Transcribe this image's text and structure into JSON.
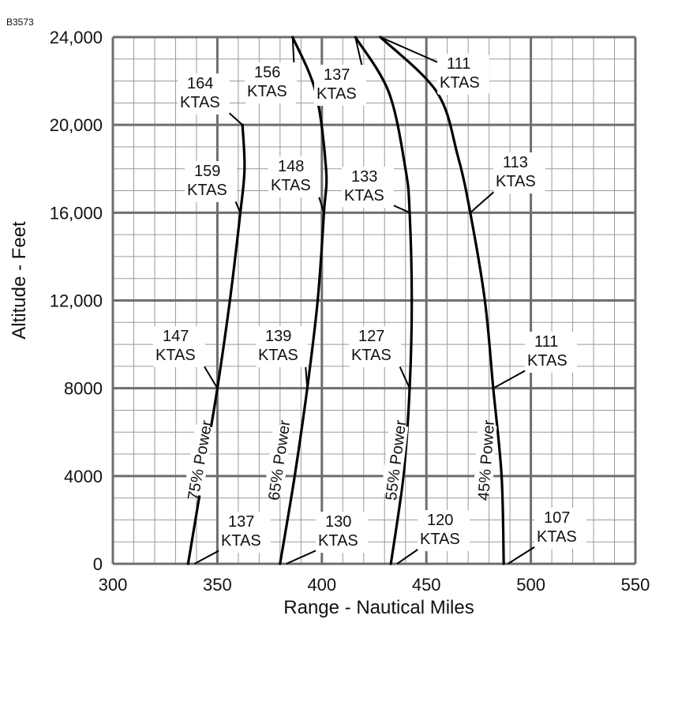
{
  "figure_code": "B3573",
  "chart_data": {
    "type": "line",
    "title": "",
    "xlabel": "Range - Nautical Miles",
    "ylabel": "Altitude - Feet",
    "xlim": [
      300,
      550
    ],
    "ylim": [
      0,
      24000
    ],
    "x_ticks": [
      "300",
      "350",
      "400",
      "450",
      "500",
      "550"
    ],
    "y_ticks": [
      "0",
      "4000",
      "8000",
      "12,000",
      "16,000",
      "20,000",
      "24,000"
    ],
    "grid": true,
    "series": [
      {
        "name": "75% Power",
        "points": [
          [
            336,
            0
          ],
          [
            343,
            4000
          ],
          [
            350,
            8000
          ],
          [
            356,
            12000
          ],
          [
            361,
            16000
          ],
          [
            363,
            18000
          ],
          [
            362,
            20000
          ]
        ]
      },
      {
        "name": "65% Power",
        "points": [
          [
            380,
            0
          ],
          [
            387,
            4000
          ],
          [
            393,
            8000
          ],
          [
            398,
            12000
          ],
          [
            401,
            16000
          ],
          [
            402,
            18000
          ],
          [
            397,
            21500
          ],
          [
            386,
            24000
          ]
        ]
      },
      {
        "name": "55% Power",
        "points": [
          [
            433,
            0
          ],
          [
            439,
            4000
          ],
          [
            442,
            8000
          ],
          [
            443,
            12000
          ],
          [
            442,
            16000
          ],
          [
            440,
            18000
          ],
          [
            432,
            21500
          ],
          [
            416,
            24000
          ]
        ]
      },
      {
        "name": "45% Power",
        "points": [
          [
            487,
            0
          ],
          [
            486,
            4000
          ],
          [
            482,
            8000
          ],
          [
            478,
            12000
          ],
          [
            471,
            16000
          ],
          [
            465,
            18600
          ],
          [
            455,
            21500
          ],
          [
            428,
            24000
          ]
        ]
      }
    ],
    "annotations": [
      {
        "text": [
          "164",
          "KTAS"
        ],
        "at": [
          362,
          20000
        ]
      },
      {
        "text": [
          "159",
          "KTAS"
        ],
        "at": [
          361,
          16000
        ]
      },
      {
        "text": [
          "147",
          "KTAS"
        ],
        "at": [
          350,
          8000
        ]
      },
      {
        "text": [
          "137",
          "KTAS"
        ],
        "at": [
          339,
          0
        ]
      },
      {
        "text": [
          "156",
          "KTAS"
        ],
        "at": [
          386,
          24000
        ]
      },
      {
        "text": [
          "148",
          "KTAS"
        ],
        "at": [
          401,
          16000
        ]
      },
      {
        "text": [
          "139",
          "KTAS"
        ],
        "at": [
          393,
          8000
        ]
      },
      {
        "text": [
          "130",
          "KTAS"
        ],
        "at": [
          383,
          0
        ]
      },
      {
        "text": [
          "137",
          "KTAS"
        ],
        "at": [
          416,
          24000
        ]
      },
      {
        "text": [
          "133",
          "KTAS"
        ],
        "at": [
          442,
          16000
        ]
      },
      {
        "text": [
          "127",
          "KTAS"
        ],
        "at": [
          442,
          8000
        ]
      },
      {
        "text": [
          "120",
          "KTAS"
        ],
        "at": [
          436,
          0
        ]
      },
      {
        "text": [
          "111",
          "KTAS"
        ],
        "at": [
          428,
          24000
        ]
      },
      {
        "text": [
          "113",
          "KTAS"
        ],
        "at": [
          471,
          16000
        ]
      },
      {
        "text": [
          "111",
          "KTAS"
        ],
        "at": [
          482,
          8000
        ]
      },
      {
        "text": [
          "107",
          "KTAS"
        ],
        "at": [
          489,
          0
        ]
      }
    ]
  }
}
